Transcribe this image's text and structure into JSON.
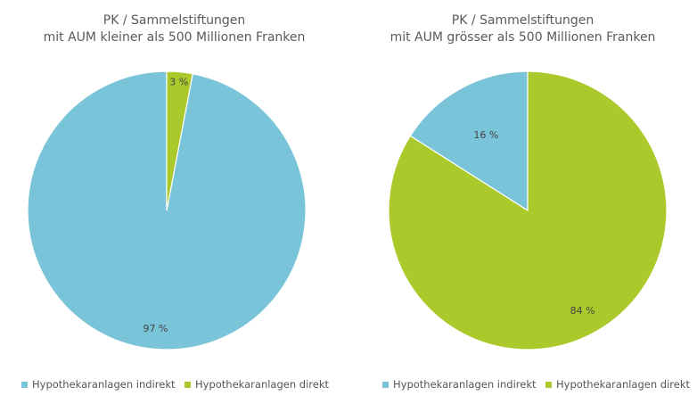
{
  "colors": {
    "indirekt": "#79c4d8",
    "direkt": "#abc92a"
  },
  "chart_data": [
    {
      "type": "pie",
      "title": [
        "PK / Sammelstiftungen",
        "mit AUM kleiner als 500 Millionen Franken"
      ],
      "series": [
        {
          "name": "Hypothekaranlagen indirekt",
          "value": 97,
          "label": "97 %"
        },
        {
          "name": "Hypothekaranlagen direkt",
          "value": 3,
          "label": "3 %"
        }
      ],
      "legend_position": "bottom-left"
    },
    {
      "type": "pie",
      "title": [
        "PK / Sammelstiftungen",
        "mit AUM grösser als 500 Millionen Franken"
      ],
      "series": [
        {
          "name": "Hypothekaranlagen indirekt",
          "value": 16,
          "label": "16 %"
        },
        {
          "name": "Hypothekaranlagen direkt",
          "value": 84,
          "label": "84 %"
        }
      ],
      "legend_position": "bottom-left"
    }
  ]
}
